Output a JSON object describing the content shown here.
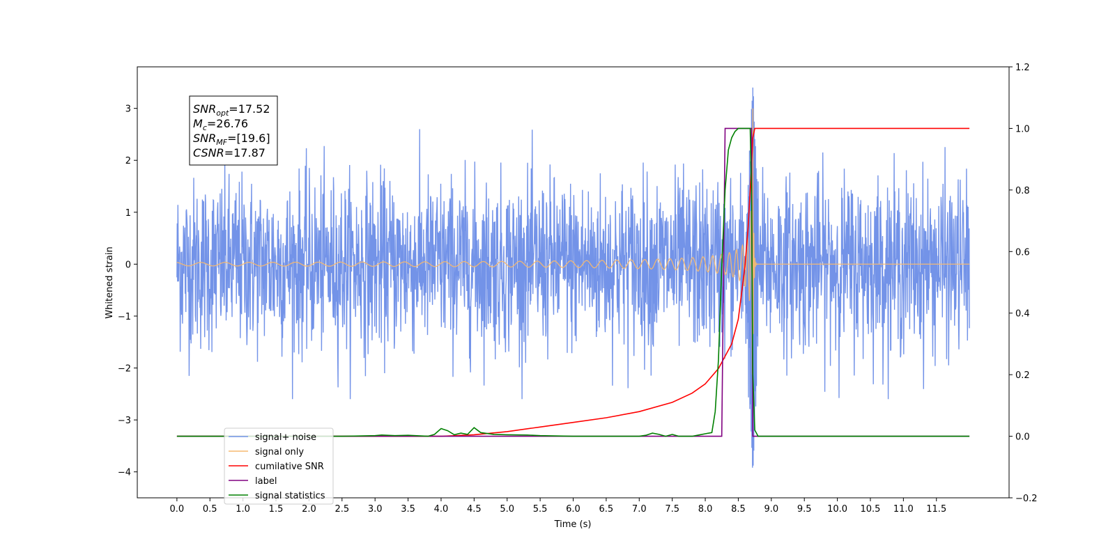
{
  "chart_data": {
    "type": "line",
    "xlabel": "Time (s)",
    "ylabel": "Whitened strain",
    "xlim": [
      -0.6,
      12.6
    ],
    "ylim": [
      -4.5,
      3.8
    ],
    "y2lim": [
      -0.2,
      1.2
    ],
    "grid": false,
    "legend_position": "lower-left",
    "x_ticks": [
      0.0,
      0.5,
      1.0,
      1.5,
      2.0,
      2.5,
      3.0,
      3.5,
      4.0,
      4.5,
      5.0,
      5.5,
      6.0,
      6.5,
      7.0,
      7.5,
      8.0,
      8.5,
      9.0,
      9.5,
      10.0,
      10.5,
      11.0,
      11.5
    ],
    "x_tick_labels": [
      "0.0",
      "0.5",
      "1.0",
      "1.5",
      "2.0",
      "2.5",
      "3.0",
      "3.5",
      "4.0",
      "4.5",
      "5.0",
      "5.5",
      "6.0",
      "6.5",
      "7.0",
      "7.5",
      "8.0",
      "8.5",
      "9.0",
      "9.5",
      "10.0",
      "10.5",
      "11.0",
      "11.5"
    ],
    "y_ticks": [
      -4,
      -3,
      -2,
      -1,
      0,
      1,
      2,
      3
    ],
    "y_tick_labels": [
      "−4",
      "−3",
      "−2",
      "−1",
      "0",
      "1",
      "2",
      "3"
    ],
    "y2_ticks": [
      -0.2,
      0.0,
      0.2,
      0.4,
      0.6,
      0.8,
      1.0,
      1.2
    ],
    "y2_tick_labels": [
      "−0.2",
      "0.0",
      "0.2",
      "0.4",
      "0.6",
      "0.8",
      "1.0",
      "1.2"
    ],
    "annotation": [
      {
        "base": "SNR",
        "sub": "opt",
        "value": "=17.52"
      },
      {
        "base": "M",
        "sub": "c",
        "value": "=26.76"
      },
      {
        "base": "SNR",
        "sub": "MF",
        "value": "=[19.6]"
      },
      {
        "base": "CSNR",
        "sub": "",
        "value": "=17.87"
      }
    ],
    "series": [
      {
        "name": "signal+ noise",
        "color": "#7393e8",
        "axis": "left",
        "kind": "noise",
        "x_range": [
          0.0,
          12.0
        ],
        "amplitude": 1.0,
        "peak": {
          "x": 8.72,
          "max": 3.4,
          "min": -4.1
        }
      },
      {
        "name": "signal only",
        "color": "#f5b870",
        "axis": "left",
        "kind": "chirp",
        "x_range": [
          0.0,
          12.0
        ],
        "merger_x": 8.72,
        "peak_amplitude": 3.0
      },
      {
        "name": "cumilative SNR",
        "color": "#ff0000",
        "axis": "right",
        "x": [
          0.0,
          4.0,
          4.5,
          5.0,
          5.5,
          6.0,
          6.5,
          7.0,
          7.5,
          7.8,
          8.0,
          8.2,
          8.4,
          8.5,
          8.6,
          8.65,
          8.7,
          8.72,
          8.75,
          12.0
        ],
        "y": [
          0.0,
          0.0,
          0.005,
          0.015,
          0.03,
          0.045,
          0.06,
          0.08,
          0.11,
          0.14,
          0.17,
          0.22,
          0.3,
          0.38,
          0.55,
          0.68,
          0.88,
          0.97,
          1.0,
          1.0
        ]
      },
      {
        "name": "label",
        "color": "#800080",
        "axis": "right",
        "x": [
          0.0,
          8.25,
          8.3,
          8.7,
          8.72,
          12.0
        ],
        "y": [
          0.0,
          0.0,
          1.0,
          1.0,
          0.0,
          0.0
        ]
      },
      {
        "name": "signal statistics",
        "color": "#008000",
        "axis": "right",
        "x": [
          0.0,
          2.5,
          3.0,
          3.1,
          3.3,
          3.5,
          3.8,
          3.9,
          4.0,
          4.1,
          4.2,
          4.3,
          4.4,
          4.5,
          4.6,
          4.8,
          5.0,
          5.3,
          5.5,
          6.0,
          7.0,
          7.1,
          7.2,
          7.3,
          7.4,
          7.5,
          7.6,
          7.7,
          7.8,
          7.9,
          8.0,
          8.1,
          8.15,
          8.2,
          8.25,
          8.3,
          8.35,
          8.4,
          8.45,
          8.5,
          8.6,
          8.68,
          8.7,
          8.72,
          8.75,
          8.8,
          12.0
        ],
        "y": [
          0.0,
          0.0,
          0.002,
          0.004,
          0.002,
          0.003,
          0.0,
          0.006,
          0.025,
          0.018,
          0.005,
          0.01,
          0.006,
          0.028,
          0.012,
          0.006,
          0.005,
          0.004,
          0.002,
          0.0,
          0.0,
          0.003,
          0.01,
          0.006,
          0.0,
          0.006,
          0.0,
          0.0,
          0.0,
          0.004,
          0.008,
          0.012,
          0.08,
          0.25,
          0.55,
          0.8,
          0.93,
          0.97,
          0.99,
          1.0,
          1.0,
          1.0,
          0.8,
          0.2,
          0.02,
          0.0,
          0.0
        ]
      }
    ]
  }
}
